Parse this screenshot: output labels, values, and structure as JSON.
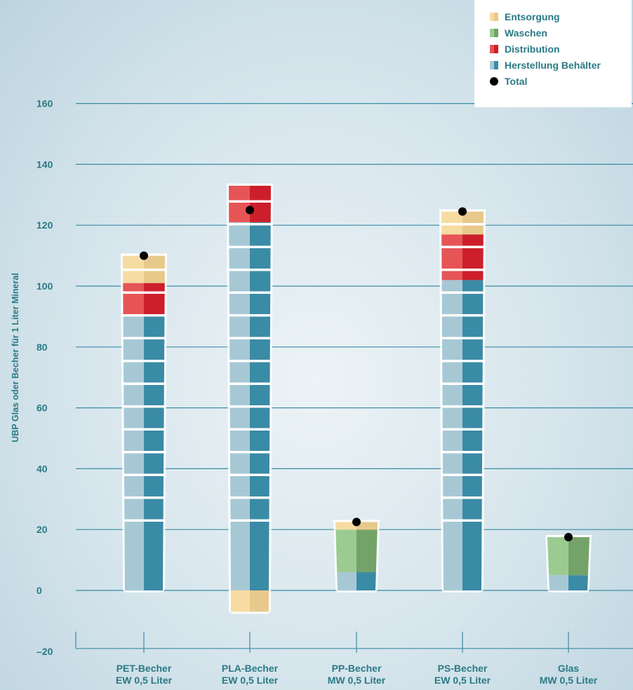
{
  "chart_data": {
    "type": "bar",
    "stacked": true,
    "title": "",
    "xlabel": "",
    "ylabel": "UBP Glas oder Becher für 1 Liter Mineral",
    "ylim": [
      -20,
      160
    ],
    "yticks": [
      160,
      140,
      120,
      100,
      80,
      60,
      40,
      20,
      0,
      -20
    ],
    "ytick_labels": [
      "160",
      "140",
      "120",
      "100",
      "80",
      "60",
      "40",
      "20",
      "0",
      "–20"
    ],
    "grid": true,
    "legend_position": "top-right",
    "categories": [
      [
        "PET-Becher",
        "EW 0,5 Liter"
      ],
      [
        "PLA-Becher",
        "EW 0,5 Liter"
      ],
      [
        "PP-Becher",
        "MW 0,5 Liter"
      ],
      [
        "PS-Becher",
        "EW 0,5 Liter"
      ],
      [
        "Glas",
        "MW 0,5 Liter"
      ]
    ],
    "series": [
      {
        "name": "Herstellung Behälter",
        "values": [
          90,
          121,
          6,
          102,
          5
        ],
        "color_light": "#a6c8d5",
        "color_dark": "#3a8ba6"
      },
      {
        "name": "Distribution",
        "values": [
          11,
          12,
          0,
          15,
          0
        ],
        "color_light": "#e65456",
        "color_dark": "#cc1f2b"
      },
      {
        "name": "Waschen",
        "values": [
          0,
          0,
          14,
          0,
          12.5
        ],
        "color_light": "#9bcb91",
        "color_dark": "#73a368"
      },
      {
        "name": "Entsorgung",
        "values": [
          9,
          -7,
          2.5,
          7.5,
          0
        ],
        "color_light": "#f6dca2",
        "color_dark": "#e8c98c"
      }
    ],
    "totals_name": "Total",
    "totals": [
      110,
      125,
      22.5,
      124.5,
      17.5
    ]
  },
  "legend": [
    {
      "label": "Entsorgung",
      "type": "swatch",
      "color_light": "#f6dca2",
      "color_dark": "#e8c98c"
    },
    {
      "label": "Waschen",
      "type": "swatch",
      "color_light": "#9bcb91",
      "color_dark": "#73a368"
    },
    {
      "label": "Distribution",
      "type": "swatch",
      "color_light": "#e65456",
      "color_dark": "#cc1f2b"
    },
    {
      "label": "Herstellung Behälter",
      "type": "swatch",
      "color_light": "#a6c8d5",
      "color_dark": "#3a8ba6"
    },
    {
      "label": "Total",
      "type": "dot",
      "color": "#000000"
    }
  ],
  "colors": {
    "text": "#2a7a86",
    "grid": "#3a8ba6"
  }
}
